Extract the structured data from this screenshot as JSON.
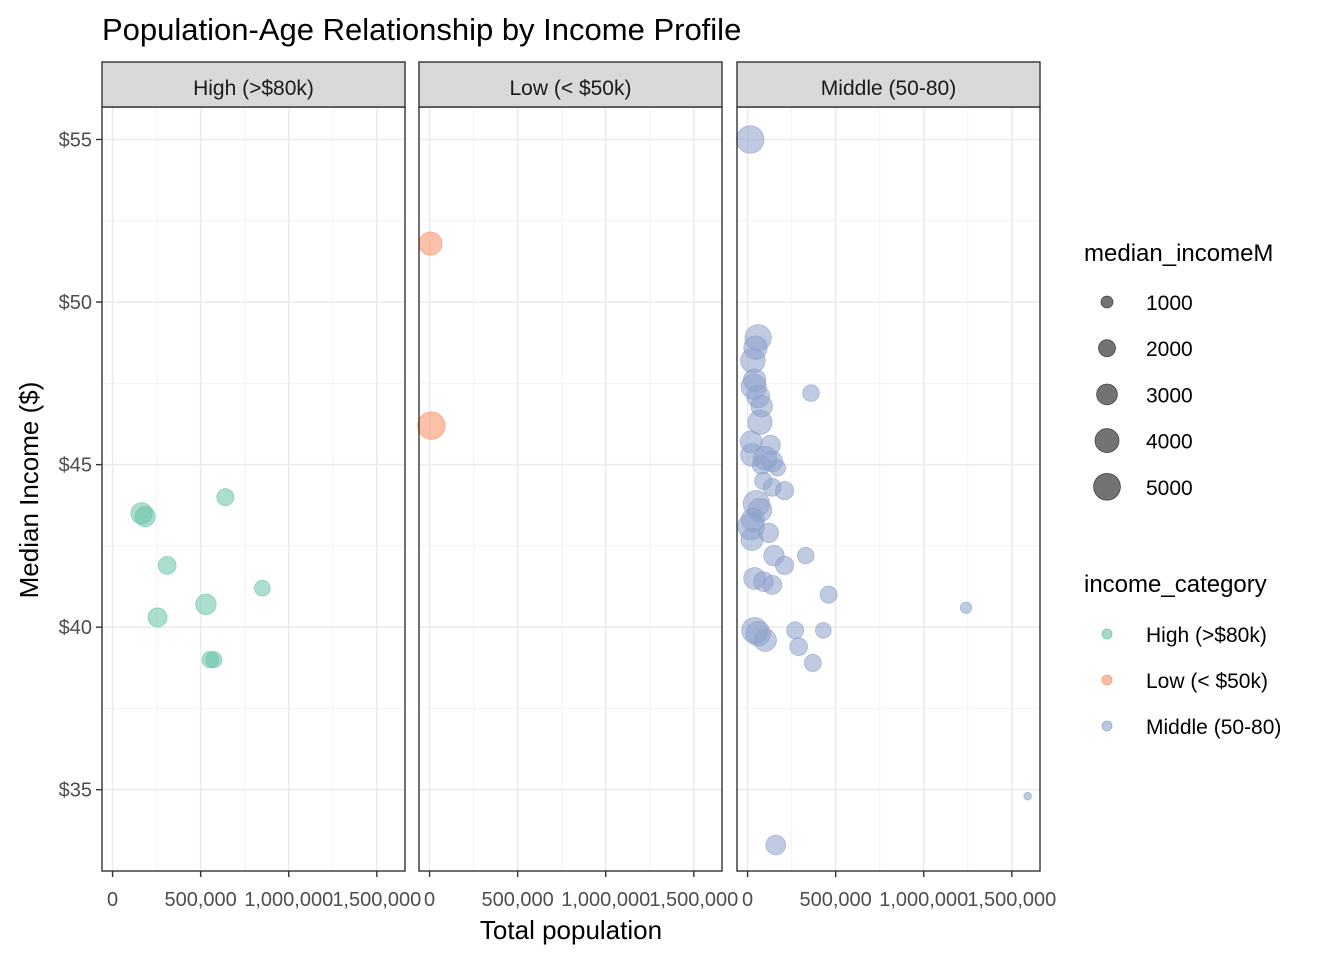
{
  "chart_data": {
    "type": "scatter",
    "title": "Population-Age Relationship by Income Profile",
    "xlabel": "Total population",
    "ylabel": "Median Income ($)",
    "xlim": [
      -60000,
      1660000
    ],
    "ylim": [
      32.5,
      56.0
    ],
    "x_ticks": [
      0,
      500000,
      1000000,
      1500000
    ],
    "x_tick_labels": [
      "0",
      "500,000",
      "1,000,000",
      "1,500,000"
    ],
    "y_ticks": [
      35,
      40,
      45,
      50,
      55
    ],
    "y_tick_labels": [
      "$35",
      "$40",
      "$45",
      "$50",
      "$55"
    ],
    "grid": true,
    "facets": [
      {
        "label": "High (>$80k)",
        "color": "#66C2A5",
        "points": [
          {
            "x": 165000,
            "y": 43.5,
            "size": 3200
          },
          {
            "x": 185000,
            "y": 43.4,
            "size": 2800
          },
          {
            "x": 640000,
            "y": 44.0,
            "size": 2000
          },
          {
            "x": 310000,
            "y": 41.9,
            "size": 2200
          },
          {
            "x": 850000,
            "y": 41.2,
            "size": 1700
          },
          {
            "x": 530000,
            "y": 40.7,
            "size": 2900
          },
          {
            "x": 255000,
            "y": 40.3,
            "size": 2500
          },
          {
            "x": 555000,
            "y": 39.0,
            "size": 1900
          },
          {
            "x": 575000,
            "y": 39.0,
            "size": 1800
          }
        ]
      },
      {
        "label": "Low (< $50k)",
        "color": "#FC8D62",
        "points": [
          {
            "x": 5000,
            "y": 51.8,
            "size": 3700
          },
          {
            "x": 10000,
            "y": 46.2,
            "size": 5200
          }
        ]
      },
      {
        "label": "Middle (50-80)",
        "color": "#8DA0CB",
        "points": [
          {
            "x": 15000,
            "y": 55.0,
            "size": 5200
          },
          {
            "x": 60000,
            "y": 48.9,
            "size": 4800
          },
          {
            "x": 45000,
            "y": 48.6,
            "size": 3800
          },
          {
            "x": 30000,
            "y": 48.2,
            "size": 4200
          },
          {
            "x": 40000,
            "y": 47.6,
            "size": 3500
          },
          {
            "x": 35000,
            "y": 47.4,
            "size": 4400
          },
          {
            "x": 60000,
            "y": 47.1,
            "size": 3600
          },
          {
            "x": 80000,
            "y": 46.8,
            "size": 3200
          },
          {
            "x": 70000,
            "y": 46.3,
            "size": 4100
          },
          {
            "x": 360000,
            "y": 47.2,
            "size": 1900
          },
          {
            "x": 20000,
            "y": 45.7,
            "size": 3300
          },
          {
            "x": 130000,
            "y": 45.6,
            "size": 2700
          },
          {
            "x": 25000,
            "y": 45.3,
            "size": 3600
          },
          {
            "x": 100000,
            "y": 45.2,
            "size": 3900
          },
          {
            "x": 140000,
            "y": 45.1,
            "size": 3000
          },
          {
            "x": 80000,
            "y": 45.0,
            "size": 2500
          },
          {
            "x": 170000,
            "y": 44.9,
            "size": 1800
          },
          {
            "x": 90000,
            "y": 44.5,
            "size": 2100
          },
          {
            "x": 140000,
            "y": 44.3,
            "size": 2200
          },
          {
            "x": 210000,
            "y": 44.2,
            "size": 2300
          },
          {
            "x": 50000,
            "y": 43.8,
            "size": 4800
          },
          {
            "x": 70000,
            "y": 43.6,
            "size": 3900
          },
          {
            "x": 30000,
            "y": 43.3,
            "size": 3700
          },
          {
            "x": 20000,
            "y": 43.1,
            "size": 4900
          },
          {
            "x": 120000,
            "y": 42.9,
            "size": 2600
          },
          {
            "x": 25000,
            "y": 42.7,
            "size": 3400
          },
          {
            "x": 150000,
            "y": 42.2,
            "size": 2900
          },
          {
            "x": 330000,
            "y": 42.2,
            "size": 1900
          },
          {
            "x": 210000,
            "y": 41.9,
            "size": 2300
          },
          {
            "x": 40000,
            "y": 41.5,
            "size": 3300
          },
          {
            "x": 90000,
            "y": 41.4,
            "size": 2700
          },
          {
            "x": 140000,
            "y": 41.3,
            "size": 2500
          },
          {
            "x": 460000,
            "y": 41.0,
            "size": 2000
          },
          {
            "x": 40000,
            "y": 39.9,
            "size": 4600
          },
          {
            "x": 60000,
            "y": 39.8,
            "size": 4200
          },
          {
            "x": 100000,
            "y": 39.6,
            "size": 3500
          },
          {
            "x": 270000,
            "y": 39.9,
            "size": 2000
          },
          {
            "x": 430000,
            "y": 39.9,
            "size": 1700
          },
          {
            "x": 290000,
            "y": 39.4,
            "size": 2200
          },
          {
            "x": 370000,
            "y": 38.9,
            "size": 2000
          },
          {
            "x": 1240000,
            "y": 40.6,
            "size": 900
          },
          {
            "x": 1590000,
            "y": 34.8,
            "size": 400
          },
          {
            "x": 160000,
            "y": 33.3,
            "size": 2700
          }
        ]
      }
    ],
    "size_legend": {
      "title": "median_incomeM",
      "breaks": [
        1000,
        2000,
        3000,
        4000,
        5000
      ]
    },
    "color_legend": {
      "title": "income_category",
      "items": [
        {
          "label": "High (>$80k)",
          "color": "#66C2A5"
        },
        {
          "label": "Low (< $50k)",
          "color": "#FC8D62"
        },
        {
          "label": "Middle (50-80)",
          "color": "#8DA0CB"
        }
      ]
    },
    "legend_position": "right"
  }
}
